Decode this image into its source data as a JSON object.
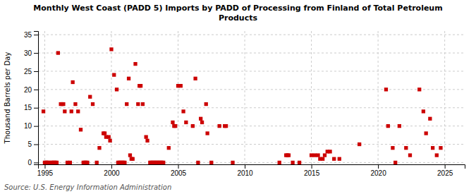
{
  "chart_data": {
    "type": "scatter",
    "title": "Monthly West Coast (PADD 5) Imports by PADD of Processing from Finland of Total Petroleum\nProducts",
    "ylabel": "Thousand Barrels per Day",
    "source": "Source: U.S. Energy Information Administration",
    "color": "#cc0000",
    "marker": "square",
    "grid": true,
    "xlim": [
      1994.5,
      2026.5
    ],
    "ylim": [
      -0.5,
      36
    ],
    "xticks": [
      1995,
      2000,
      2005,
      2010,
      2015,
      2020,
      2025
    ],
    "yticks": [
      0,
      5,
      10,
      15,
      20,
      25,
      30,
      35
    ],
    "x": [
      1994.9,
      1995.0,
      1995.1,
      1995.2,
      1995.3,
      1995.5,
      1995.6,
      1995.7,
      1995.8,
      1995.9,
      1996.0,
      1996.2,
      1996.3,
      1996.4,
      1996.5,
      1996.7,
      1996.9,
      1997.0,
      1997.1,
      1997.3,
      1997.5,
      1997.7,
      1997.9,
      1998.0,
      1998.1,
      1998.2,
      1998.4,
      1998.6,
      1998.9,
      1999.1,
      1999.4,
      1999.5,
      1999.6,
      1999.8,
      1999.9,
      2000.0,
      2000.2,
      2000.4,
      2000.5,
      2000.6,
      2000.7,
      2000.8,
      2000.9,
      2001.0,
      2001.15,
      2001.3,
      2001.4,
      2001.5,
      2001.6,
      2001.8,
      2002.0,
      2002.1,
      2002.2,
      2002.35,
      2002.6,
      2002.7,
      2002.9,
      2003.0,
      2003.1,
      2003.2,
      2003.3,
      2003.4,
      2003.5,
      2003.6,
      2003.7,
      2003.8,
      2003.9,
      2004.3,
      2004.6,
      2004.7,
      2004.8,
      2005.0,
      2005.2,
      2005.4,
      2005.6,
      2006.1,
      2006.3,
      2006.5,
      2006.7,
      2006.8,
      2007.1,
      2007.2,
      2007.5,
      2008.1,
      2008.5,
      2008.6,
      2009.1,
      2012.6,
      2013.1,
      2013.2,
      2013.3,
      2013.6,
      2014.1,
      2015.0,
      2015.25,
      2015.5,
      2015.65,
      2015.85,
      2016.0,
      2016.2,
      2016.4,
      2016.7,
      2017.1,
      2018.6,
      2020.6,
      2020.75,
      2021.1,
      2021.3,
      2021.6,
      2022.1,
      2022.4,
      2023.1,
      2023.4,
      2023.6,
      2023.9,
      2024.1,
      2024.4,
      2024.7
    ],
    "values": [
      14,
      0,
      0,
      0,
      0,
      0,
      0,
      0,
      0,
      0,
      30,
      16,
      16,
      16,
      14,
      0,
      0,
      14,
      22,
      16,
      14,
      9,
      0,
      0,
      0,
      0,
      18,
      16,
      0,
      4,
      8,
      8,
      7,
      7,
      6,
      31,
      24,
      20,
      0,
      0,
      0,
      0,
      0,
      0,
      16,
      23,
      2,
      1,
      1,
      27,
      16,
      21,
      21,
      16,
      7,
      6,
      0,
      0,
      0,
      0,
      0,
      0,
      0,
      0,
      0,
      0,
      0,
      4,
      11,
      10,
      10,
      21,
      21,
      14,
      11,
      10,
      23,
      0,
      12,
      11,
      16,
      8,
      0,
      10,
      10,
      10,
      0,
      0,
      2,
      2,
      2,
      0,
      0,
      2,
      2,
      2,
      1,
      1,
      2,
      3,
      3,
      1,
      1,
      5,
      20,
      10,
      4,
      0,
      10,
      4,
      2,
      20,
      14,
      8,
      12,
      4,
      2,
      4
    ]
  }
}
